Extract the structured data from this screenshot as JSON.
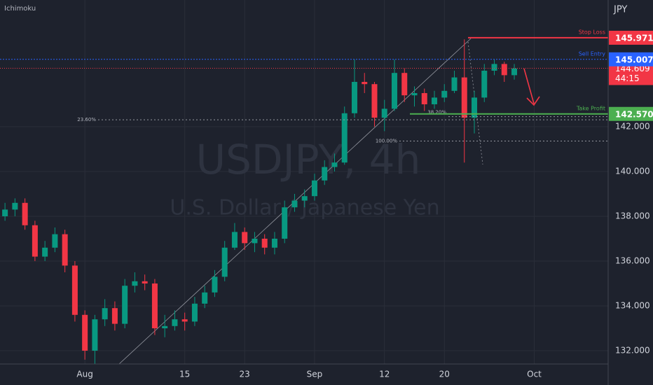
{
  "chart_data": {
    "type": "candlestick",
    "title": "USDJPY, 4h",
    "subtitle": "U.S. Dollar / Japanese Yen",
    "indicator": "Ichimoku",
    "currency": "JPY",
    "x": [
      -8,
      -7,
      -6,
      -5,
      -4,
      -3,
      -2,
      -1,
      0,
      1,
      2,
      3,
      4,
      5,
      6,
      7,
      8,
      9,
      10,
      11,
      12,
      13,
      14,
      15,
      16,
      17,
      18,
      19,
      20,
      21,
      22,
      23,
      24,
      25,
      26,
      27,
      28,
      29,
      30,
      31,
      32,
      33,
      34,
      35,
      36,
      37,
      38,
      39,
      40,
      41,
      42,
      43
    ],
    "open": [
      138.0,
      138.3,
      138.6,
      137.6,
      136.2,
      136.6,
      137.2,
      135.8,
      133.6,
      132.0,
      133.4,
      133.9,
      133.2,
      134.9,
      135.1,
      135.0,
      133.0,
      133.1,
      133.4,
      133.3,
      134.1,
      134.6,
      135.3,
      136.6,
      137.3,
      136.8,
      137.0,
      136.6,
      137.0,
      138.4,
      138.7,
      138.9,
      139.6,
      140.2,
      140.4,
      142.6,
      144.0,
      143.9,
      142.4,
      142.8,
      144.4,
      143.4,
      143.5,
      143.0,
      143.3,
      143.6,
      144.2,
      142.4,
      143.3,
      144.5,
      144.8,
      144.3
    ],
    "high": [
      138.6,
      138.8,
      138.8,
      137.8,
      136.9,
      137.5,
      137.4,
      136.0,
      133.8,
      133.6,
      134.3,
      134.2,
      135.2,
      135.5,
      135.4,
      135.2,
      133.6,
      133.8,
      133.7,
      134.4,
      134.9,
      135.6,
      136.9,
      137.7,
      137.5,
      137.3,
      137.2,
      137.3,
      138.7,
      139.0,
      139.2,
      139.9,
      140.5,
      140.8,
      142.9,
      145.0,
      144.4,
      144.0,
      143.2,
      145.0,
      144.6,
      143.8,
      143.7,
      143.6,
      143.9,
      144.5,
      145.9,
      143.6,
      144.8,
      145.0,
      144.9,
      144.8
    ],
    "low": [
      137.8,
      138.0,
      137.4,
      136.0,
      136.0,
      136.4,
      135.5,
      133.3,
      131.6,
      131.4,
      133.1,
      132.9,
      133.0,
      134.6,
      134.7,
      132.7,
      132.6,
      132.9,
      132.9,
      133.1,
      133.9,
      134.4,
      135.1,
      136.5,
      136.5,
      136.4,
      136.3,
      136.3,
      136.8,
      138.2,
      138.4,
      138.7,
      139.4,
      140.0,
      140.3,
      142.4,
      143.5,
      142.0,
      141.8,
      142.7,
      143.1,
      142.9,
      142.7,
      142.8,
      143.1,
      143.5,
      140.4,
      141.7,
      143.1,
      144.3,
      144.0,
      144.1
    ],
    "close": [
      138.3,
      138.6,
      137.6,
      136.2,
      136.6,
      137.2,
      135.8,
      133.6,
      132.0,
      133.4,
      133.9,
      133.2,
      134.9,
      135.1,
      135.0,
      133.0,
      133.1,
      133.4,
      133.3,
      134.1,
      134.6,
      135.3,
      136.6,
      137.3,
      136.8,
      137.0,
      136.6,
      137.0,
      138.4,
      138.7,
      138.9,
      139.6,
      140.2,
      140.4,
      142.6,
      144.0,
      143.9,
      142.4,
      142.8,
      144.4,
      143.4,
      143.5,
      143.0,
      143.3,
      143.6,
      144.2,
      142.4,
      143.3,
      144.5,
      144.8,
      144.3,
      144.6
    ],
    "up_color": "#089981",
    "down_color": "#f23645",
    "xlim": [
      -8.5,
      52.4
    ],
    "xticks": [
      {
        "value": 0,
        "label": "Aug"
      },
      {
        "value": 10,
        "label": "15"
      },
      {
        "value": 16,
        "label": "23"
      },
      {
        "value": 23,
        "label": "Sep"
      },
      {
        "value": 30,
        "label": "12"
      },
      {
        "value": 36,
        "label": "20"
      },
      {
        "value": 45,
        "label": "Oct"
      }
    ],
    "ylim": [
      131.406,
      147.656
    ],
    "yticks": [
      {
        "value": 132,
        "label": "132.000"
      },
      {
        "value": 134,
        "label": "134.000"
      },
      {
        "value": 136,
        "label": "136.000"
      },
      {
        "value": 138,
        "label": "138.000"
      },
      {
        "value": 140,
        "label": "140.000"
      },
      {
        "value": 142,
        "label": "142.000"
      }
    ],
    "grid": true,
    "levels": [
      {
        "name": "Stop Loss",
        "value": 145.971,
        "color": "#f23645"
      },
      {
        "name": "Sell Entry",
        "value": 145.007,
        "color": "#2962ff"
      },
      {
        "name": "Take Profit",
        "value": 142.57,
        "value_label": "142.570",
        "color": "#4caf50"
      }
    ],
    "current_price": 144.609,
    "countdown": "44:15",
    "fib_levels": [
      {
        "label": "23.60%",
        "value": 142.31
      },
      {
        "label": "38.20%",
        "value": 142.45
      },
      {
        "label": "100.00%",
        "value": 141.36
      }
    ]
  }
}
